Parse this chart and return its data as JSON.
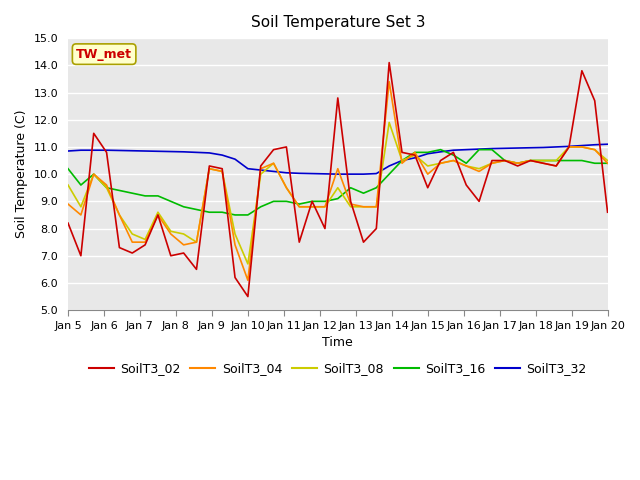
{
  "title": "Soil Temperature Set 3",
  "xlabel": "Time",
  "ylabel": "Soil Temperature (C)",
  "ylim": [
    5.0,
    15.0
  ],
  "yticks": [
    5.0,
    6.0,
    7.0,
    8.0,
    9.0,
    10.0,
    11.0,
    12.0,
    13.0,
    14.0,
    15.0
  ],
  "annotation": "TW_met",
  "bg_color": "#e8e8e8",
  "series_order": [
    "SoilT3_32",
    "SoilT3_16",
    "SoilT3_08",
    "SoilT3_04",
    "SoilT3_02"
  ],
  "series": {
    "SoilT3_02": {
      "color": "#cc0000",
      "values": [
        8.2,
        7.0,
        11.5,
        10.8,
        7.3,
        7.1,
        7.4,
        8.5,
        7.0,
        7.1,
        6.5,
        10.3,
        10.2,
        6.2,
        5.5,
        10.3,
        10.9,
        11.0,
        7.5,
        9.0,
        8.0,
        12.8,
        9.0,
        7.5,
        8.0,
        14.1,
        10.8,
        10.7,
        9.5,
        10.5,
        10.8,
        9.6,
        9.0,
        10.5,
        10.5,
        10.3,
        10.5,
        10.4,
        10.3,
        11.0,
        13.8,
        12.7,
        8.6
      ]
    },
    "SoilT3_04": {
      "color": "#ff8800",
      "values": [
        8.9,
        8.5,
        10.0,
        9.6,
        8.5,
        7.5,
        7.5,
        8.5,
        7.8,
        7.4,
        7.5,
        10.2,
        10.1,
        7.4,
        6.1,
        10.2,
        10.4,
        9.5,
        8.8,
        8.8,
        8.8,
        10.2,
        8.9,
        8.8,
        8.8,
        13.4,
        10.4,
        10.8,
        10.0,
        10.4,
        10.5,
        10.3,
        10.1,
        10.4,
        10.5,
        10.4,
        10.5,
        10.4,
        10.3,
        11.0,
        11.0,
        10.9,
        10.4
      ]
    },
    "SoilT3_08": {
      "color": "#cccc00",
      "values": [
        9.6,
        8.8,
        10.0,
        9.5,
        8.5,
        7.8,
        7.6,
        8.6,
        7.9,
        7.8,
        7.5,
        10.2,
        10.1,
        7.8,
        6.7,
        10.0,
        10.4,
        9.5,
        8.8,
        8.8,
        8.8,
        9.5,
        8.8,
        8.8,
        8.8,
        11.9,
        10.5,
        10.7,
        10.3,
        10.4,
        10.5,
        10.3,
        10.2,
        10.4,
        10.5,
        10.4,
        10.5,
        10.5,
        10.5,
        11.0,
        11.0,
        10.9,
        10.5
      ]
    },
    "SoilT3_16": {
      "color": "#00bb00",
      "values": [
        10.2,
        9.6,
        10.0,
        9.5,
        9.4,
        9.3,
        9.2,
        9.2,
        9.0,
        8.8,
        8.7,
        8.6,
        8.6,
        8.5,
        8.5,
        8.8,
        9.0,
        9.0,
        8.9,
        9.0,
        9.0,
        9.1,
        9.5,
        9.3,
        9.5,
        10.0,
        10.5,
        10.8,
        10.8,
        10.9,
        10.7,
        10.4,
        10.9,
        10.9,
        10.5,
        10.4,
        10.5,
        10.5,
        10.5,
        10.5,
        10.5,
        10.4,
        10.4
      ]
    },
    "SoilT3_32": {
      "color": "#0000cc",
      "values": [
        10.85,
        10.88,
        10.88,
        10.88,
        10.87,
        10.86,
        10.85,
        10.84,
        10.83,
        10.82,
        10.8,
        10.78,
        10.7,
        10.55,
        10.2,
        10.15,
        10.1,
        10.05,
        10.03,
        10.02,
        10.01,
        10.0,
        10.0,
        10.0,
        10.02,
        10.3,
        10.5,
        10.6,
        10.75,
        10.82,
        10.88,
        10.9,
        10.92,
        10.94,
        10.95,
        10.96,
        10.97,
        10.98,
        11.0,
        11.02,
        11.05,
        11.08,
        11.1
      ]
    }
  },
  "x_labels": [
    "Jan 5",
    "Jan 6",
    "Jan 7",
    "Jan 8",
    "Jan 9",
    "Jan 10",
    "Jan 11",
    "Jan 12",
    "Jan 13",
    "Jan 14",
    "Jan 15",
    "Jan 16",
    "Jan 17",
    "Jan 18",
    "Jan 19",
    "Jan 20"
  ],
  "n_points": 43,
  "figsize": [
    6.4,
    4.8
  ],
  "dpi": 100,
  "title_fontsize": 11,
  "axis_fontsize": 9,
  "tick_fontsize": 8,
  "legend_fontsize": 9,
  "linewidth": 1.2
}
